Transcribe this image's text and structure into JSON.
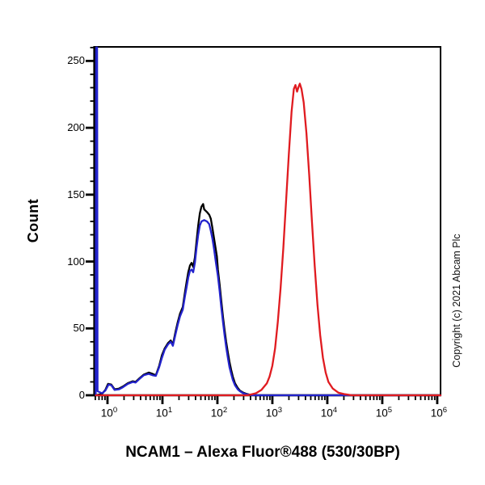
{
  "title_bottom": "NCAM1 – Alexa Fluor®488 (530/30BP)",
  "copyright_text": "Copyright (c) 2021 Abcam Plc",
  "colors": {
    "axis": "#000000",
    "black_curve": "#000000",
    "blue_curve": "#2323cc",
    "red_curve": "#e01b20",
    "background": "#ffffff"
  },
  "chart_data": {
    "type": "line",
    "subtype": "flow-cytometry-histogram-overlay",
    "title": "NCAM1 – Alexa Fluor®488 (530/30BP)",
    "xlabel": "",
    "ylabel": "Count",
    "x_scale": "log10",
    "x_tick_exponents": [
      0,
      1,
      2,
      3,
      4,
      5,
      6
    ],
    "y_ticks": [
      0,
      50,
      100,
      150,
      200,
      250
    ],
    "y_minor_step": 10,
    "xlim_log": [
      -0.235,
      6.06
    ],
    "ylim": [
      0,
      260.5
    ],
    "grid": false,
    "legend": "none",
    "series": [
      {
        "name": "black-curve",
        "color": "#000000",
        "peak": {
          "x_approx": 52,
          "count": 143
        },
        "points": [
          [
            -0.21,
            0
          ],
          [
            -0.1,
            1
          ],
          [
            -0.04,
            4
          ],
          [
            0.01,
            8.5
          ],
          [
            0.07,
            8
          ],
          [
            0.13,
            4.5
          ],
          [
            0.21,
            5
          ],
          [
            0.28,
            6.5
          ],
          [
            0.37,
            9
          ],
          [
            0.46,
            10.5
          ],
          [
            0.51,
            10
          ],
          [
            0.59,
            13
          ],
          [
            0.66,
            15.5
          ],
          [
            0.75,
            17
          ],
          [
            0.82,
            16
          ],
          [
            0.88,
            15
          ],
          [
            0.94,
            22
          ],
          [
            0.99,
            30
          ],
          [
            1.04,
            35
          ],
          [
            1.1,
            39
          ],
          [
            1.15,
            41
          ],
          [
            1.19,
            38
          ],
          [
            1.24,
            48
          ],
          [
            1.28,
            55
          ],
          [
            1.32,
            61
          ],
          [
            1.37,
            66
          ],
          [
            1.41,
            77
          ],
          [
            1.44,
            85
          ],
          [
            1.47,
            92
          ],
          [
            1.5,
            97
          ],
          [
            1.53,
            99
          ],
          [
            1.56,
            96
          ],
          [
            1.59,
            103
          ],
          [
            1.62,
            115
          ],
          [
            1.65,
            127
          ],
          [
            1.68,
            136
          ],
          [
            1.71,
            141
          ],
          [
            1.74,
            143
          ],
          [
            1.76,
            139
          ],
          [
            1.81,
            137
          ],
          [
            1.85,
            135
          ],
          [
            1.88,
            132
          ],
          [
            1.91,
            125
          ],
          [
            1.94,
            117
          ],
          [
            1.99,
            104
          ],
          [
            2.01,
            94
          ],
          [
            2.04,
            83
          ],
          [
            2.07,
            71
          ],
          [
            2.1,
            59
          ],
          [
            2.13,
            49
          ],
          [
            2.16,
            40
          ],
          [
            2.19,
            32
          ],
          [
            2.22,
            25
          ],
          [
            2.25,
            19
          ],
          [
            2.28,
            14
          ],
          [
            2.32,
            9
          ],
          [
            2.37,
            5.5
          ],
          [
            2.41,
            3.5
          ],
          [
            2.47,
            2
          ],
          [
            2.53,
            1
          ],
          [
            2.6,
            0.3
          ],
          [
            2.7,
            0
          ],
          [
            6.06,
            0
          ]
        ]
      },
      {
        "name": "blue-curve",
        "color": "#2323cc",
        "peak": {
          "x_approx": 50,
          "count": 131
        },
        "points": [
          [
            -0.215,
            0
          ],
          [
            -0.205,
            260
          ],
          [
            -0.19,
            260
          ],
          [
            -0.18,
            3
          ],
          [
            -0.1,
            1.5
          ],
          [
            -0.04,
            3.5
          ],
          [
            0.02,
            8
          ],
          [
            0.07,
            7.5
          ],
          [
            0.13,
            4
          ],
          [
            0.21,
            4.5
          ],
          [
            0.28,
            6
          ],
          [
            0.37,
            8.5
          ],
          [
            0.46,
            10
          ],
          [
            0.51,
            9.5
          ],
          [
            0.59,
            12.5
          ],
          [
            0.66,
            15
          ],
          [
            0.75,
            16
          ],
          [
            0.82,
            15
          ],
          [
            0.88,
            14.5
          ],
          [
            0.94,
            21
          ],
          [
            0.99,
            28
          ],
          [
            1.04,
            34
          ],
          [
            1.1,
            38
          ],
          [
            1.15,
            40
          ],
          [
            1.19,
            37
          ],
          [
            1.24,
            46
          ],
          [
            1.28,
            53
          ],
          [
            1.32,
            59
          ],
          [
            1.37,
            64
          ],
          [
            1.41,
            74
          ],
          [
            1.44,
            81
          ],
          [
            1.47,
            88
          ],
          [
            1.5,
            93
          ],
          [
            1.53,
            94
          ],
          [
            1.56,
            92
          ],
          [
            1.59,
            99
          ],
          [
            1.62,
            110
          ],
          [
            1.65,
            120
          ],
          [
            1.68,
            127
          ],
          [
            1.71,
            130
          ],
          [
            1.76,
            131
          ],
          [
            1.81,
            130
          ],
          [
            1.85,
            128
          ],
          [
            1.88,
            123
          ],
          [
            1.91,
            117
          ],
          [
            1.94,
            109
          ],
          [
            1.97,
            100
          ],
          [
            2.01,
            89
          ],
          [
            2.04,
            78
          ],
          [
            2.07,
            66
          ],
          [
            2.1,
            55
          ],
          [
            2.13,
            45
          ],
          [
            2.16,
            36
          ],
          [
            2.19,
            28
          ],
          [
            2.22,
            21
          ],
          [
            2.25,
            16
          ],
          [
            2.28,
            11.5
          ],
          [
            2.32,
            7.5
          ],
          [
            2.37,
            4.5
          ],
          [
            2.41,
            3
          ],
          [
            2.47,
            1.5
          ],
          [
            2.53,
            0.7
          ],
          [
            2.6,
            0.2
          ],
          [
            2.68,
            0
          ],
          [
            6.06,
            0
          ]
        ]
      },
      {
        "name": "red-curve",
        "color": "#e01b20",
        "peak": {
          "x_approx": 3100,
          "count": 233
        },
        "points": [
          [
            -0.21,
            0
          ],
          [
            2.55,
            0
          ],
          [
            2.7,
            1.5
          ],
          [
            2.8,
            4
          ],
          [
            2.9,
            9
          ],
          [
            2.95,
            14
          ],
          [
            3,
            22
          ],
          [
            3.05,
            35
          ],
          [
            3.1,
            55
          ],
          [
            3.15,
            80
          ],
          [
            3.2,
            110
          ],
          [
            3.25,
            145
          ],
          [
            3.3,
            180
          ],
          [
            3.35,
            212
          ],
          [
            3.39,
            229
          ],
          [
            3.42,
            232
          ],
          [
            3.45,
            227
          ],
          [
            3.48,
            231
          ],
          [
            3.5,
            233
          ],
          [
            3.53,
            229
          ],
          [
            3.57,
            219
          ],
          [
            3.62,
            196
          ],
          [
            3.67,
            165
          ],
          [
            3.72,
            130
          ],
          [
            3.77,
            97
          ],
          [
            3.82,
            68
          ],
          [
            3.87,
            45
          ],
          [
            3.92,
            28
          ],
          [
            3.97,
            17
          ],
          [
            4.02,
            10
          ],
          [
            4.1,
            5
          ],
          [
            4.2,
            2
          ],
          [
            4.32,
            0.8
          ],
          [
            4.45,
            0
          ],
          [
            6.06,
            0
          ]
        ]
      }
    ]
  }
}
